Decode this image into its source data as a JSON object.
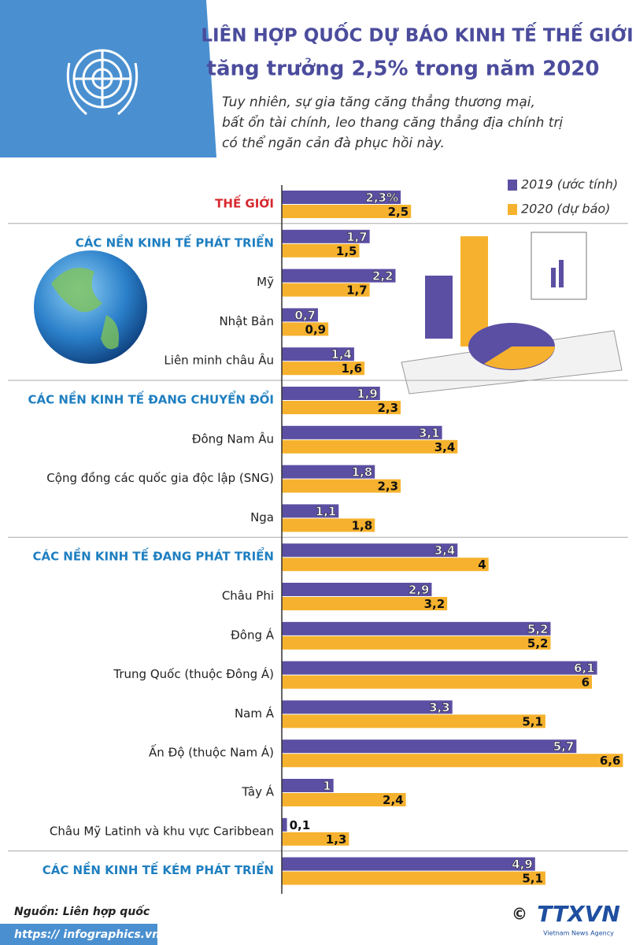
{
  "chart_data": {
    "type": "bar",
    "title": "LIÊN HỢP QUỐC DỰ BÁO KINH TẾ THẾ GIỚI",
    "subtitle": "tăng trưởng 2,5% trong năm 2020",
    "note_lines": [
      "Tuy nhiên, sự gia tăng căng thẳng thương mại,",
      "bất ổn tài chính, leo thang căng thẳng địa chính trị",
      "có thể ngăn cản đà phục hồi này."
    ],
    "categories": [
      "THẾ GIỚI",
      "CÁC NỀN KINH TẾ PHÁT TRIỂN",
      "Mỹ",
      "Nhật Bản",
      "Liên minh châu Âu",
      "CÁC NỀN KINH TẾ ĐANG CHUYỂN ĐỔI",
      "Đông Nam Âu",
      "Cộng đồng các quốc gia độc lập (SNG)",
      "Nga",
      "CÁC NỀN KINH TẾ ĐANG PHÁT TRIỂN",
      "Châu Phi",
      "Đông Á",
      "Trung Quốc (thuộc Đông Á)",
      "Nam Á",
      "Ấn Độ (thuộc Nam Á)",
      "Tây Á",
      "Châu Mỹ Latinh và khu vực Caribbean",
      "CÁC NỀN KINH TẾ KÉM PHÁT TRIỂN"
    ],
    "series": [
      {
        "name": "2019 (ước tính)",
        "color": "#5b4fa3",
        "values": [
          2.3,
          1.7,
          2.2,
          0.7,
          1.4,
          1.9,
          3.1,
          1.8,
          1.1,
          3.4,
          2.9,
          5.2,
          6.1,
          3.3,
          5.7,
          1,
          0.1,
          4.9
        ],
        "value_labels": [
          "2,3%",
          "1,7",
          "2,2",
          "0,7",
          "1,4",
          "1,9",
          "3,1",
          "1,8",
          "1,1",
          "3,4",
          "2,9",
          "5,2",
          "6,1",
          "3,3",
          "5,7",
          "1",
          "0,1",
          "4,9"
        ]
      },
      {
        "name": "2020 (dự báo)",
        "color": "#f6b22e",
        "values": [
          2.5,
          1.5,
          1.7,
          0.9,
          1.6,
          2.3,
          3.4,
          2.3,
          1.8,
          4,
          3.2,
          5.2,
          6,
          5.1,
          6.6,
          2.4,
          1.3,
          5.1
        ],
        "value_labels": [
          "2,5",
          "1,5",
          "1,7",
          "0,9",
          "1,6",
          "2,3",
          "3,4",
          "2,3",
          "1,8",
          "4",
          "3,2",
          "5,2",
          "6",
          "5,1",
          "6,6",
          "2,4",
          "1,3",
          "5,1"
        ]
      }
    ],
    "xlim": [
      0,
      6.7
    ]
  },
  "footer": {
    "source": "Nguồn: Liên hợp quốc",
    "url": "https:// infographics.vn",
    "copyright": "©",
    "logo": "TTXVN",
    "logo_sub": "Vietnam News Agency"
  }
}
